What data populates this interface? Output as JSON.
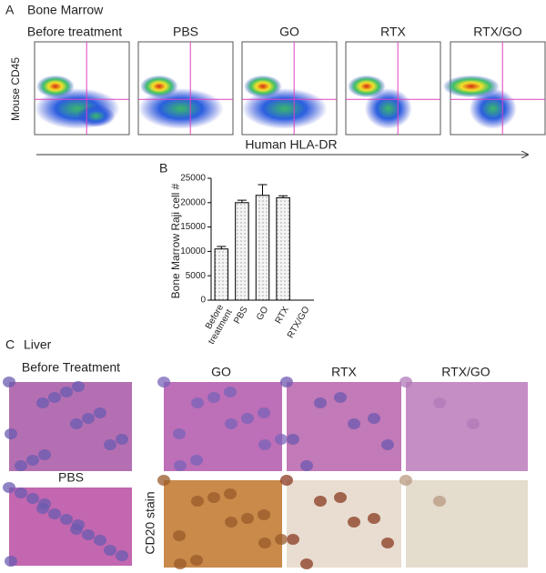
{
  "panel_a": {
    "letter": "A",
    "title": "Bone Marrow",
    "plots": [
      "Before treatment",
      "PBS",
      "GO",
      "RTX",
      "RTX/GO"
    ],
    "y_label": "Mouse CD45",
    "x_label": "Human HLA-DR"
  },
  "chart_data": {
    "type": "bar",
    "letter": "B",
    "ylabel": "Bone Marrow Raji cell #",
    "categories": [
      "Before treatment",
      "PBS",
      "GO",
      "RTX",
      "RTX/GO"
    ],
    "values": [
      10500,
      20000,
      21500,
      21000,
      0
    ],
    "errors": [
      500,
      500,
      2200,
      400,
      0
    ],
    "color": "#f2f2f2",
    "ylim": [
      0,
      25000
    ],
    "yticks": [
      0,
      5000,
      10000,
      15000,
      20000,
      25000
    ]
  },
  "panel_c": {
    "letter": "C",
    "title": "Liver",
    "he_titles": [
      "Before Treatment",
      "GO",
      "RTX",
      "RTX/GO"
    ],
    "pbs_title": "PBS",
    "stain_label": "CD20 stain"
  }
}
